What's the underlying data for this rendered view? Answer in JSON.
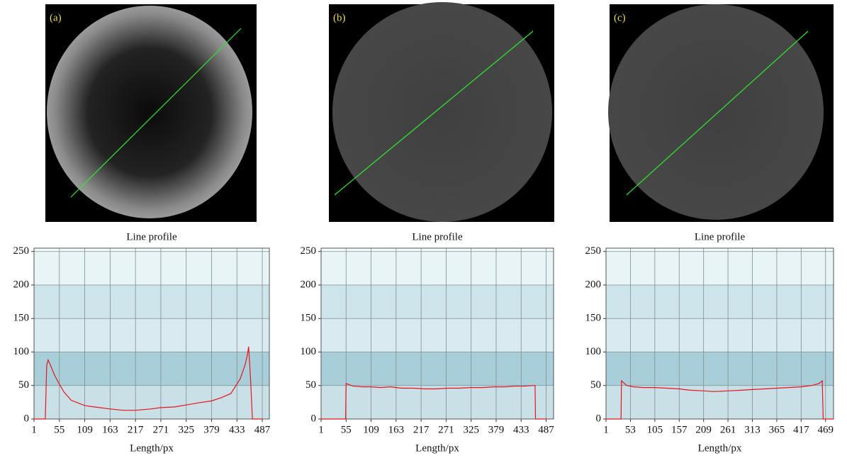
{
  "chart_data": [
    {
      "type": "line",
      "panel_label": "(a)",
      "title": "Line profile",
      "x_label": "Length/px",
      "color": "#e8141c",
      "grid": true,
      "xlim": [
        1,
        502
      ],
      "xticks": [
        1,
        55,
        109,
        163,
        217,
        271,
        325,
        379,
        433,
        487
      ],
      "ylim": [
        0,
        255
      ],
      "yticks": [
        0,
        50,
        100,
        150,
        200,
        250
      ],
      "x": [
        1,
        25,
        28,
        31,
        35,
        45,
        55,
        65,
        80,
        109,
        140,
        163,
        190,
        217,
        250,
        271,
        300,
        325,
        350,
        379,
        400,
        420,
        440,
        450,
        455,
        458,
        462,
        466,
        487
      ],
      "values": [
        0,
        0,
        80,
        88,
        82,
        65,
        52,
        40,
        28,
        20,
        17,
        15,
        13,
        13,
        15,
        17,
        18,
        21,
        24,
        27,
        32,
        38,
        60,
        80,
        95,
        108,
        60,
        0,
        0
      ]
    },
    {
      "type": "line",
      "panel_label": "(b)",
      "title": "Line profile",
      "x_label": "Length/px",
      "color": "#e8141c",
      "grid": true,
      "xlim": [
        1,
        503
      ],
      "xticks": [
        1,
        55,
        109,
        163,
        217,
        271,
        325,
        379,
        433,
        487
      ],
      "ylim": [
        0,
        255
      ],
      "yticks": [
        0,
        50,
        100,
        150,
        200,
        250
      ],
      "x": [
        1,
        54,
        55,
        70,
        90,
        109,
        130,
        150,
        175,
        200,
        225,
        250,
        275,
        300,
        325,
        350,
        375,
        400,
        420,
        440,
        460,
        463,
        464,
        487
      ],
      "values": [
        0,
        0,
        53,
        49,
        48,
        48,
        47,
        48,
        46,
        46,
        45,
        45,
        46,
        46,
        47,
        47,
        48,
        48,
        49,
        49,
        50,
        50,
        0,
        0
      ]
    },
    {
      "type": "line",
      "panel_label": "(c)",
      "title": "Line profile",
      "x_label": "Length/px",
      "color": "#e8141c",
      "grid": true,
      "xlim": [
        1,
        486
      ],
      "xticks": [
        1,
        53,
        105,
        157,
        209,
        261,
        313,
        365,
        417,
        469
      ],
      "ylim": [
        0,
        255
      ],
      "yticks": [
        0,
        50,
        100,
        150,
        200,
        250
      ],
      "x": [
        1,
        33,
        34,
        45,
        60,
        80,
        105,
        130,
        157,
        180,
        209,
        230,
        261,
        290,
        313,
        340,
        365,
        390,
        417,
        440,
        455,
        462,
        464,
        486
      ],
      "values": [
        0,
        0,
        57,
        50,
        48,
        47,
        47,
        46,
        45,
        43,
        42,
        41,
        42,
        43,
        44,
        45,
        46,
        47,
        48,
        50,
        53,
        57,
        0,
        0
      ]
    }
  ]
}
